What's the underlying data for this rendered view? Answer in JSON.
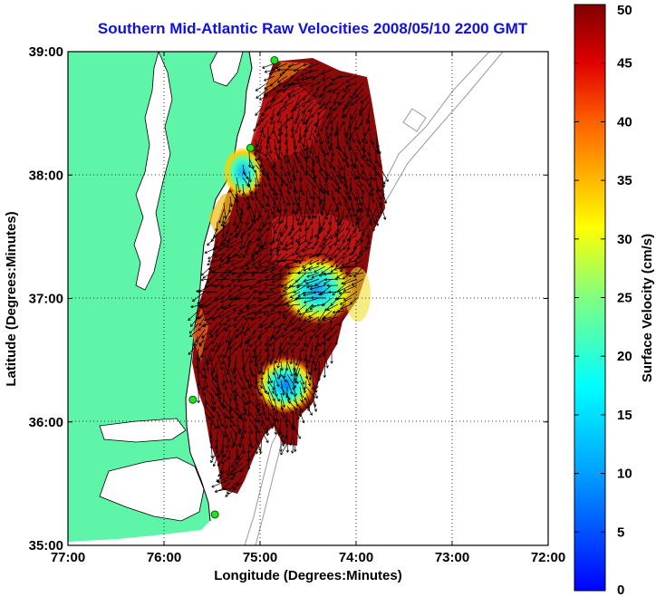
{
  "chart_data": {
    "type": "heatmap",
    "title": "Southern Mid-Atlantic Raw Velocities 2008/05/10 2200 GMT",
    "xlabel": "Longitude (Degrees:Minutes)",
    "ylabel": "Latitude (Degrees:Minutes)",
    "colorbar_label": "Surface Velocity (cm/s)",
    "x_ticks": [
      "77:00",
      "76:00",
      "75:00",
      "74:00",
      "73:00",
      "72:00"
    ],
    "y_ticks": [
      "39:00",
      "38:00",
      "37:00",
      "36:00",
      "35:00"
    ],
    "xlim": [
      -77,
      -72
    ],
    "ylim": [
      35,
      39
    ],
    "clim": [
      0,
      50
    ],
    "colorbar_ticks": [
      0,
      5,
      10,
      15,
      20,
      25,
      30,
      35,
      40,
      45,
      50
    ],
    "grid": true,
    "colormap": "jet",
    "land_color": "#5ef5a8",
    "stations": [
      {
        "lon": -74.85,
        "lat": 38.93
      },
      {
        "lon": -75.1,
        "lat": 38.22
      },
      {
        "lon": -75.7,
        "lat": 36.18
      },
      {
        "lon": -75.47,
        "lat": 35.25
      }
    ],
    "low_velocity_areas": [
      {
        "lon": -75.15,
        "lat": 38.05,
        "velocity": 13
      },
      {
        "lon": -74.45,
        "lat": 37.02,
        "velocity": 12
      },
      {
        "lon": -74.75,
        "lat": 36.3,
        "velocity": 8
      }
    ]
  }
}
